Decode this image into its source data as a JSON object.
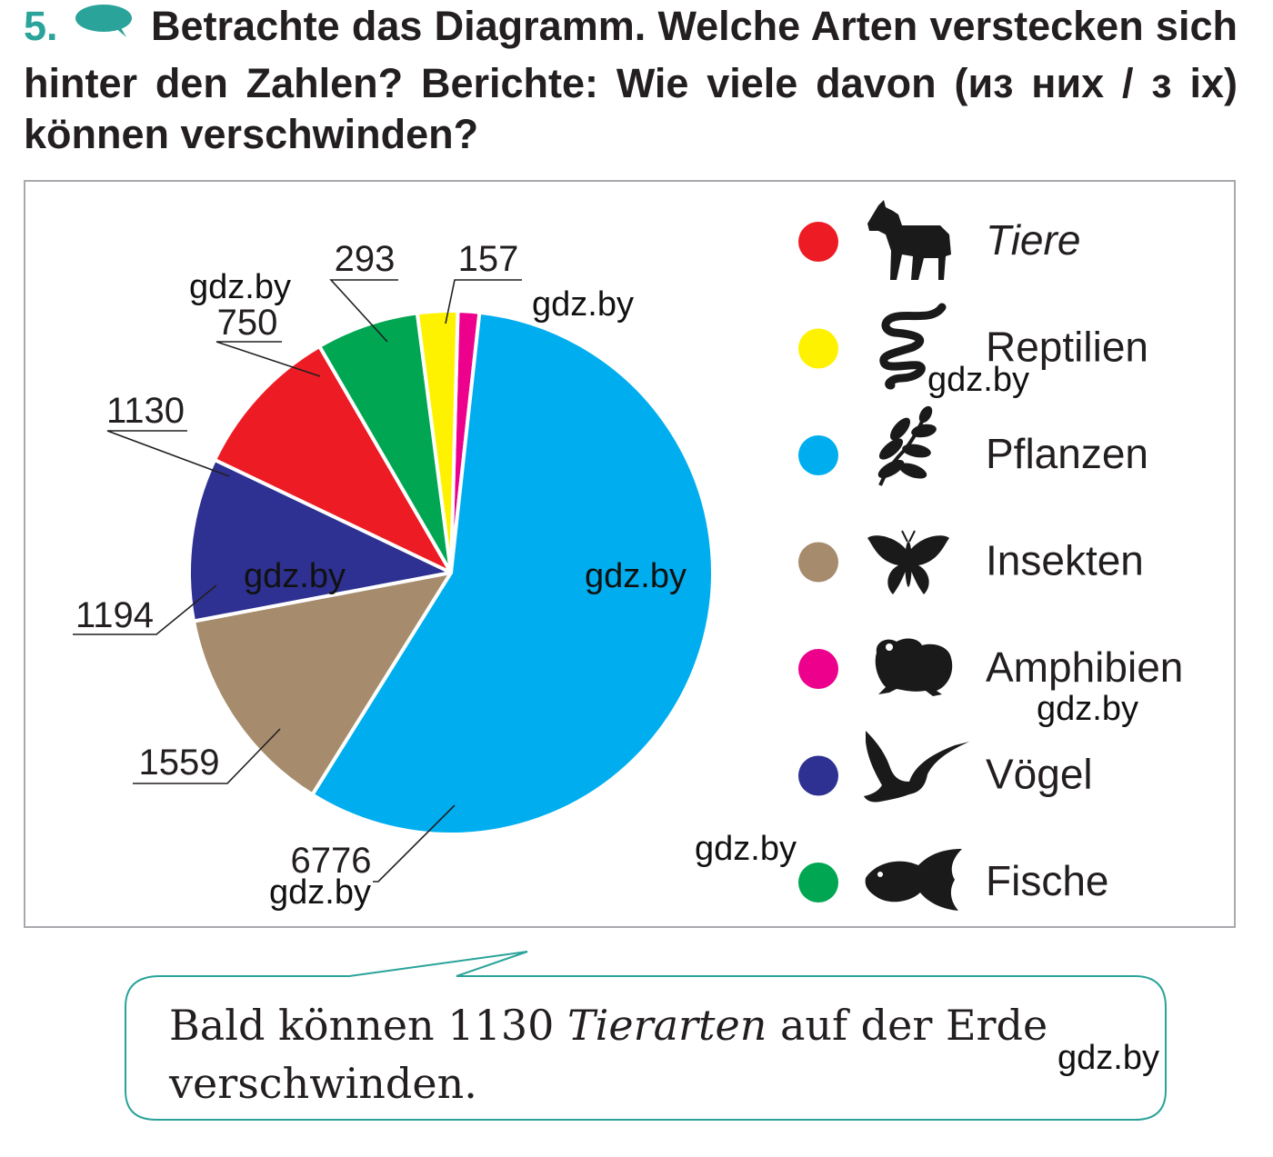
{
  "task": {
    "number": "5.",
    "icon": "speech-bubble-icon",
    "text": "Betrachte das Diagramm. Welche Arten verstecken sich hinter den Zahlen? Berichte: Wie viele davon (из них / з ix) können verschwinden?"
  },
  "chart_data": {
    "type": "pie",
    "title": "",
    "values": [
      157,
      6776,
      1559,
      1194,
      1130,
      750,
      293
    ],
    "value_labels": [
      "157",
      "6776",
      "1559",
      "1194",
      "1130",
      "750",
      "293"
    ],
    "slice_colors": [
      "#ec008c",
      "#00aeef",
      "#a68c6d",
      "#2e3192",
      "#ed1c24",
      "#00a651",
      "#fff200"
    ],
    "legend": [
      {
        "label": "Tiere",
        "color": "#ed1c24",
        "icon": "horse-icon",
        "italic": true
      },
      {
        "label": "Reptilien",
        "color": "#fff200",
        "icon": "snake-icon",
        "italic": false
      },
      {
        "label": "Pflanzen",
        "color": "#00aeef",
        "icon": "leaf-icon",
        "italic": false
      },
      {
        "label": "Insekten",
        "color": "#a68c6d",
        "icon": "butterfly-icon",
        "italic": false
      },
      {
        "label": "Amphibien",
        "color": "#ec008c",
        "icon": "frog-icon",
        "italic": false
      },
      {
        "label": "Vögel",
        "color": "#2e3192",
        "icon": "bird-icon",
        "italic": false
      },
      {
        "label": "Fische",
        "color": "#00a651",
        "icon": "fish-icon",
        "italic": false
      }
    ]
  },
  "answer": {
    "part1": "Bald können 1130 ",
    "italic": "Tierarten",
    "part2": " auf der Erde verschwinden."
  },
  "watermark": "gdz.by"
}
